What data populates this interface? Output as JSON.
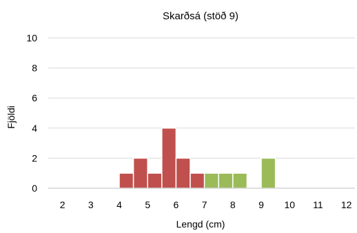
{
  "chart_data": {
    "type": "bar",
    "title": "Skarðsá (stöð 9)",
    "xlabel": "Lengd (cm)",
    "ylabel": "Fjöldi",
    "xlim": [
      1.5,
      12.3
    ],
    "ylim": [
      0,
      10
    ],
    "x_ticks": [
      2,
      3,
      4,
      5,
      6,
      7,
      8,
      9,
      10,
      11,
      12
    ],
    "y_ticks": [
      0,
      2,
      4,
      6,
      8,
      10
    ],
    "grid": true,
    "bin_width": 0.5,
    "series": [
      {
        "color": "#c0504d",
        "bins": [
          {
            "x": 4.25,
            "value": 1
          },
          {
            "x": 4.75,
            "value": 2
          },
          {
            "x": 5.25,
            "value": 1
          },
          {
            "x": 5.75,
            "value": 4
          },
          {
            "x": 6.25,
            "value": 2
          },
          {
            "x": 6.75,
            "value": 1
          }
        ]
      },
      {
        "color": "#9bbb59",
        "bins": [
          {
            "x": 7.25,
            "value": 1
          },
          {
            "x": 7.75,
            "value": 1
          },
          {
            "x": 8.25,
            "value": 1
          },
          {
            "x": 9.25,
            "value": 2
          }
        ]
      }
    ]
  }
}
